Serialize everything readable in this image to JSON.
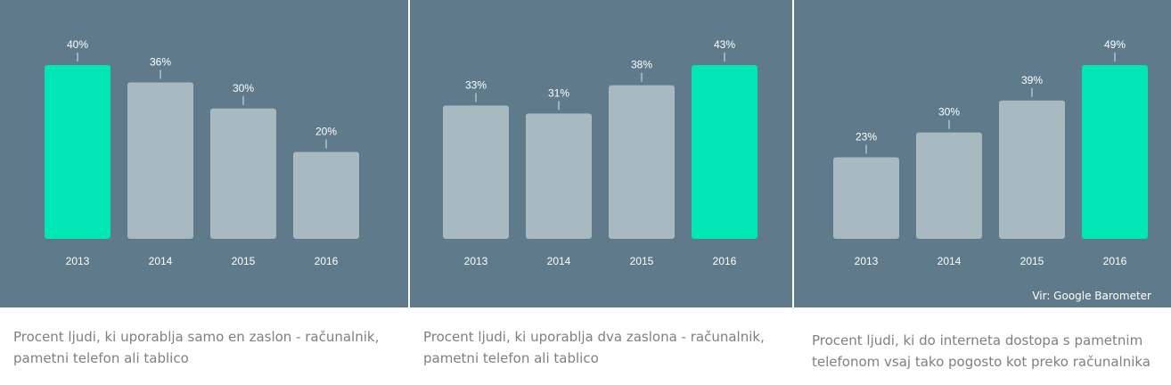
{
  "colors": {
    "background": "#5f7b8b",
    "highlight": "#00e6b4",
    "bar": "#a9b9c0",
    "text": "#ffffff",
    "caption": "#7f7f7f"
  },
  "chart_data": [
    {
      "type": "bar",
      "categories": [
        "2013",
        "2014",
        "2015",
        "2016"
      ],
      "values": [
        40,
        36,
        30,
        20
      ],
      "labels": [
        "40%",
        "36%",
        "30%",
        "20%"
      ],
      "highlight_index": 0,
      "caption": [
        "Procent ljudi, ki uporablja samo en zaslon - računalnik,",
        "pametni telefon ali tablico"
      ]
    },
    {
      "type": "bar",
      "categories": [
        "2013",
        "2014",
        "2015",
        "2016"
      ],
      "values": [
        33,
        31,
        38,
        43
      ],
      "labels": [
        "33%",
        "31%",
        "38%",
        "43%"
      ],
      "highlight_index": 3,
      "caption": [
        "Procent ljudi, ki uporablja dva zaslona - računalnik,",
        "pametni telefon ali tablico"
      ]
    },
    {
      "type": "bar",
      "categories": [
        "2013",
        "2014",
        "2015",
        "2016"
      ],
      "values": [
        23,
        30,
        39,
        49
      ],
      "labels": [
        "23%",
        "30%",
        "39%",
        "49%"
      ],
      "highlight_index": 3,
      "caption": [
        "Procent ljudi, ki do interneta dostopa s pametnim",
        "telefonom vsaj tako pogosto kot preko računalnika"
      ]
    }
  ],
  "source": "Vir: Google Barometer"
}
